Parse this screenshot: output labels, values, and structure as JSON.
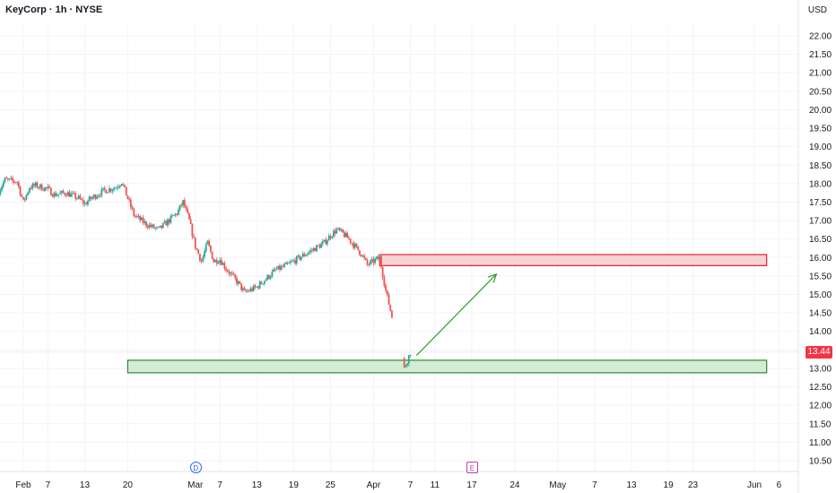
{
  "header": {
    "title": "KeyCorp · 1h · NYSE",
    "currency": "USD"
  },
  "last_price": {
    "label": "13.44",
    "value": 13.44
  },
  "markers": [
    {
      "label": "D",
      "kind": "dividend",
      "date": "2025-03-03"
    },
    {
      "label": "E",
      "kind": "earnings",
      "date": "2025-04-17"
    }
  ],
  "colors": {
    "up": "#26a69a",
    "down": "#ef5350",
    "resistance_fill": "#f9d2d5",
    "resistance_border": "#e0252f",
    "support_fill": "#d4ecd4",
    "support_border": "#2e8b2e",
    "arrow": "#2e9e2e",
    "grid": "#f0f3fa"
  },
  "chart_data": {
    "type": "candlestick",
    "title": "KeyCorp · 1h · NYSE",
    "y_axis": {
      "unit": "USD",
      "ticks": [
        "10.50",
        "11.00",
        "11.50",
        "12.00",
        "12.50",
        "13.00",
        "13.50",
        "14.00",
        "14.50",
        "15.00",
        "15.50",
        "16.00",
        "16.50",
        "17.00",
        "17.50",
        "18.00",
        "18.50",
        "19.00",
        "19.50",
        "20.00",
        "20.50",
        "21.00",
        "21.50",
        "22.00"
      ],
      "range": [
        10.3,
        22.4
      ]
    },
    "x_axis": {
      "ticks": [
        {
          "label": "Feb",
          "date": "2025-02-03"
        },
        {
          "label": "7",
          "date": "2025-02-07"
        },
        {
          "label": "13",
          "date": "2025-02-13"
        },
        {
          "label": "20",
          "date": "2025-02-20"
        },
        {
          "label": "Mar",
          "date": "2025-03-03"
        },
        {
          "label": "7",
          "date": "2025-03-07"
        },
        {
          "label": "13",
          "date": "2025-03-13"
        },
        {
          "label": "19",
          "date": "2025-03-19"
        },
        {
          "label": "25",
          "date": "2025-03-25"
        },
        {
          "label": "Apr",
          "date": "2025-04-01"
        },
        {
          "label": "7",
          "date": "2025-04-07"
        },
        {
          "label": "11",
          "date": "2025-04-11"
        },
        {
          "label": "17",
          "date": "2025-04-17"
        },
        {
          "label": "24",
          "date": "2025-04-24"
        },
        {
          "label": "May",
          "date": "2025-05-01"
        },
        {
          "label": "7",
          "date": "2025-05-07"
        },
        {
          "label": "13",
          "date": "2025-05-13"
        },
        {
          "label": "19",
          "date": "2025-05-19"
        },
        {
          "label": "23",
          "date": "2025-05-23"
        },
        {
          "label": "Jun",
          "date": "2025-06-02"
        },
        {
          "label": "6",
          "date": "2025-06-06"
        }
      ]
    },
    "price_path": [
      [
        "2025-01-30",
        17.8
      ],
      [
        "2025-01-31",
        18.1
      ],
      [
        "2025-02-02",
        18.05
      ],
      [
        "2025-02-03",
        17.5
      ],
      [
        "2025-02-04",
        17.9
      ],
      [
        "2025-02-05",
        17.95
      ],
      [
        "2025-02-07",
        17.85
      ],
      [
        "2025-02-08",
        17.7
      ],
      [
        "2025-02-10",
        17.75
      ],
      [
        "2025-02-12",
        17.6
      ],
      [
        "2025-02-13",
        17.45
      ],
      [
        "2025-02-14",
        17.6
      ],
      [
        "2025-02-16",
        17.8
      ],
      [
        "2025-02-18",
        17.9
      ],
      [
        "2025-02-19",
        18.05
      ],
      [
        "2025-02-20",
        17.6
      ],
      [
        "2025-02-21",
        17.15
      ],
      [
        "2025-02-23",
        16.9
      ],
      [
        "2025-02-25",
        16.75
      ],
      [
        "2025-02-26",
        16.9
      ],
      [
        "2025-02-28",
        17.2
      ],
      [
        "2025-03-01",
        17.5
      ],
      [
        "2025-03-02",
        17.0
      ],
      [
        "2025-03-03",
        16.3
      ],
      [
        "2025-03-04",
        15.9
      ],
      [
        "2025-03-05",
        16.4
      ],
      [
        "2025-03-06",
        15.9
      ],
      [
        "2025-03-07",
        15.95
      ],
      [
        "2025-03-08",
        15.7
      ],
      [
        "2025-03-10",
        15.3
      ],
      [
        "2025-03-11",
        15.05
      ],
      [
        "2025-03-13",
        15.2
      ],
      [
        "2025-03-14",
        15.35
      ],
      [
        "2025-03-16",
        15.65
      ],
      [
        "2025-03-18",
        15.8
      ],
      [
        "2025-03-20",
        16.0
      ],
      [
        "2025-03-22",
        16.2
      ],
      [
        "2025-03-24",
        16.4
      ],
      [
        "2025-03-25",
        16.6
      ],
      [
        "2025-03-26",
        16.75
      ],
      [
        "2025-03-27",
        16.65
      ],
      [
        "2025-03-28",
        16.5
      ],
      [
        "2025-03-30",
        16.1
      ],
      [
        "2025-03-31",
        15.8
      ],
      [
        "2025-04-01",
        15.9
      ],
      [
        "2025-04-02",
        16.0
      ],
      [
        "2025-04-03",
        15.1
      ],
      [
        "2025-04-04",
        14.4
      ],
      [
        "2025-04-05",
        14.1
      ],
      [
        "2025-04-06",
        13.0
      ],
      [
        "2025-04-07",
        13.44
      ]
    ],
    "annotations": [
      {
        "type": "zone",
        "role": "resistance",
        "start": "2025-04-02",
        "end": "2025-06-04",
        "low": 15.78,
        "high": 16.08
      },
      {
        "type": "zone",
        "role": "support",
        "start": "2025-02-20",
        "end": "2025-06-04",
        "low": 12.88,
        "high": 13.22
      },
      {
        "type": "arrow",
        "from": [
          "2025-04-08",
          13.35
        ],
        "to": [
          "2025-04-21",
          15.55
        ]
      }
    ]
  }
}
